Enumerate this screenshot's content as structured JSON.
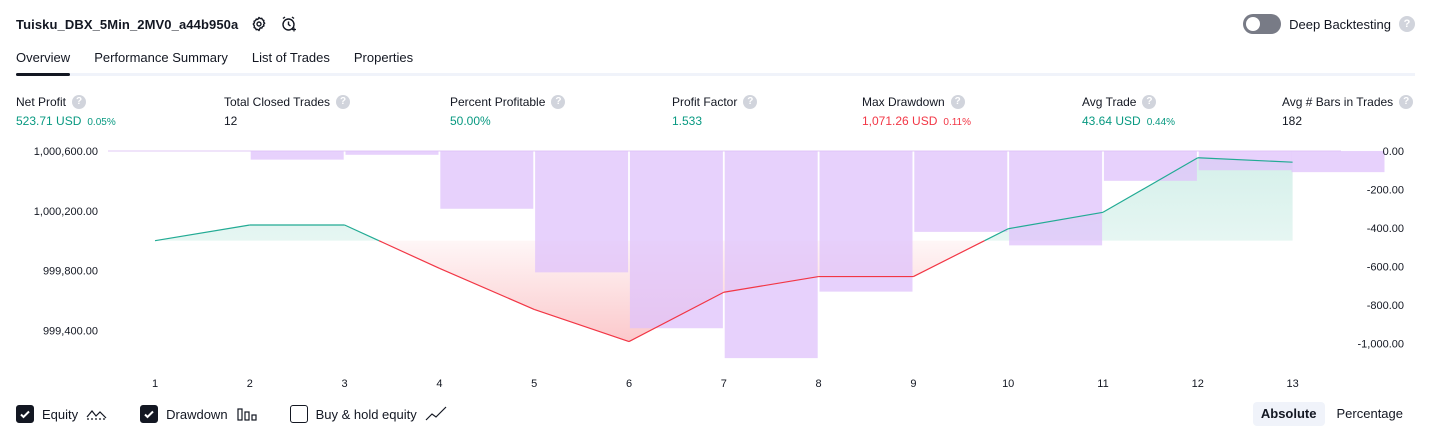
{
  "header": {
    "title": "Tuisku_DBX_5Min_2MV0_a44b950a",
    "deep_backtesting_label": "Deep Backtesting",
    "help_glyph": "?"
  },
  "tabs": [
    {
      "label": "Overview",
      "active": true
    },
    {
      "label": "Performance Summary",
      "active": false
    },
    {
      "label": "List of Trades",
      "active": false
    },
    {
      "label": "Properties",
      "active": false
    }
  ],
  "metrics": {
    "net_profit": {
      "label": "Net Profit",
      "value": "523.71 USD",
      "pct": "0.05%"
    },
    "total_closed_trades": {
      "label": "Total Closed Trades",
      "value": "12"
    },
    "percent_profitable": {
      "label": "Percent Profitable",
      "value": "50.00%"
    },
    "profit_factor": {
      "label": "Profit Factor",
      "value": "1.533"
    },
    "max_drawdown": {
      "label": "Max Drawdown",
      "value": "1,071.26 USD",
      "pct": "0.11%"
    },
    "avg_trade": {
      "label": "Avg Trade",
      "value": "43.64 USD",
      "pct": "0.44%"
    },
    "avg_bars": {
      "label": "Avg # Bars in Trades",
      "value": "182"
    }
  },
  "colors": {
    "equity_line": "#22ab94",
    "loss_line": "#f23645",
    "drawdown_bar": "#dfc2fb",
    "profit_fill": "#d5f0ea",
    "loss_fill": "#fbc6c9"
  },
  "chart_data": {
    "type": "area",
    "x": [
      1,
      2,
      3,
      4,
      5,
      6,
      7,
      8,
      9,
      10,
      11,
      12,
      13
    ],
    "series": [
      {
        "axis": "left",
        "values": [
          1000000.0,
          1000105.0,
          1000105.0,
          999815.0,
          999540.0,
          999325.0,
          999655.0,
          999760.0,
          999760.0,
          1000080.0,
          1000190.0,
          1000555.0,
          1000525.0
        ]
      },
      {
        "axis": "right",
        "values": [
          0,
          -45,
          -20,
          -300,
          -630,
          -920,
          -1075,
          -730,
          -420,
          -490,
          -155,
          -100,
          -110
        ]
      }
    ],
    "baseline": 1000000.0,
    "left_ticks": [
      "1,000,600.00",
      "1,000,200.00",
      "999,800.00",
      "999,400.00"
    ],
    "left_tick_values": [
      1000600,
      1000200,
      999800,
      999400
    ],
    "right_ticks": [
      "0.00",
      "-200.00",
      "-400.00",
      "-600.00",
      "-800.00",
      "-1,000.00"
    ],
    "right_tick_values": [
      0,
      -200,
      -400,
      -600,
      -800,
      -1000
    ],
    "left_range": [
      999175,
      1000600
    ],
    "right_range": [
      -1090,
      5
    ],
    "x_tick_labels": [
      "1",
      "2",
      "3",
      "4",
      "5",
      "6",
      "7",
      "8",
      "9",
      "10",
      "11",
      "12",
      "13"
    ]
  },
  "legend": {
    "equity": {
      "label": "Equity",
      "checked": true
    },
    "drawdown": {
      "label": "Drawdown",
      "checked": true
    },
    "buy_hold": {
      "label": "Buy & hold equity",
      "checked": false
    }
  },
  "mode": {
    "absolute": "Absolute",
    "percentage": "Percentage",
    "selected": "Absolute"
  }
}
